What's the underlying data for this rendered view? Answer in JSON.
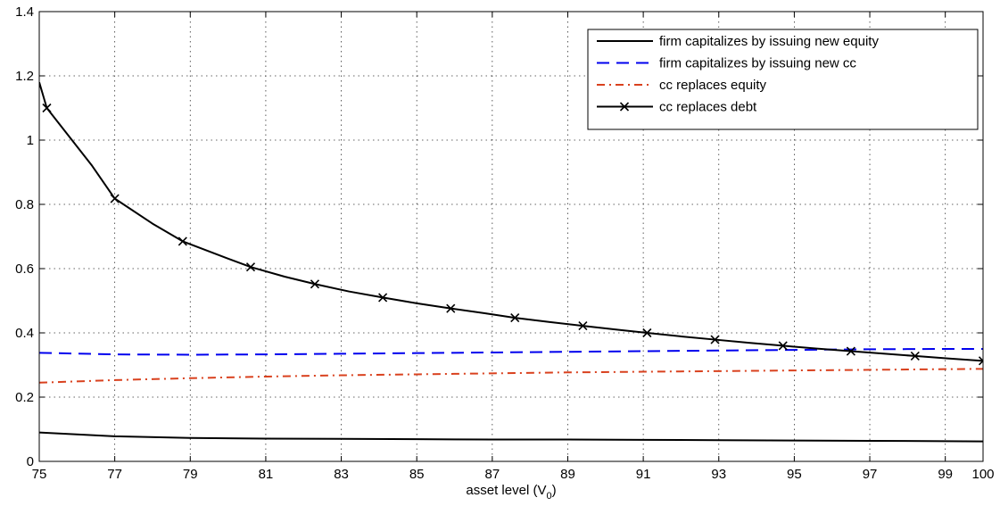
{
  "chart_data": {
    "type": "line",
    "xlabel": "asset level (V",
    "xlabel_sub": "0",
    "xlabel_suffix": ")",
    "ylabel": "",
    "title": "",
    "xlim": [
      75,
      100
    ],
    "ylim": [
      0,
      1.4
    ],
    "xticks": [
      75,
      77,
      79,
      81,
      83,
      85,
      87,
      89,
      91,
      93,
      95,
      97,
      99,
      100
    ],
    "yticks": [
      0,
      0.2,
      0.4,
      0.6,
      0.8,
      1,
      1.2,
      1.4
    ],
    "ytick_labels": [
      "0",
      "0.2",
      "0.4",
      "0.6",
      "0.8",
      "1",
      "1.2",
      "1.4"
    ],
    "grid": true,
    "legend_position": "top-right",
    "series": [
      {
        "name": "firm capitalizes by issuing new equity",
        "color": "#000000",
        "style": "solid",
        "marker": "none",
        "x": [
          75,
          77,
          79,
          81,
          83,
          85,
          87,
          89,
          91,
          93,
          95,
          97,
          99,
          100
        ],
        "y": [
          0.09,
          0.078,
          0.073,
          0.071,
          0.07,
          0.069,
          0.068,
          0.068,
          0.067,
          0.066,
          0.065,
          0.064,
          0.063,
          0.062
        ]
      },
      {
        "name": "firm capitalizes by issuing new cc",
        "color": "#0000ee",
        "style": "dashed",
        "marker": "none",
        "x": [
          75,
          77,
          79,
          81,
          83,
          85,
          87,
          89,
          91,
          93,
          95,
          97,
          99,
          100
        ],
        "y": [
          0.338,
          0.333,
          0.332,
          0.333,
          0.335,
          0.337,
          0.339,
          0.341,
          0.343,
          0.345,
          0.347,
          0.349,
          0.35,
          0.35
        ]
      },
      {
        "name": "cc replaces equity",
        "color": "#d9411e",
        "style": "dashdot",
        "marker": "none",
        "x": [
          75,
          77,
          79,
          81,
          83,
          85,
          87,
          89,
          91,
          93,
          95,
          97,
          99,
          100
        ],
        "y": [
          0.245,
          0.253,
          0.259,
          0.264,
          0.268,
          0.271,
          0.274,
          0.277,
          0.279,
          0.281,
          0.283,
          0.285,
          0.287,
          0.288
        ]
      },
      {
        "name": "cc replaces debt",
        "color": "#000000",
        "style": "solid",
        "marker": "x",
        "x": [
          75,
          75.2,
          76.4,
          77,
          78,
          78.8,
          79.8,
          80.6,
          81.5,
          82.3,
          83.2,
          84.1,
          85,
          85.9,
          86.8,
          87.6,
          88.5,
          89.4,
          90.3,
          91.1,
          92,
          92.9,
          93.8,
          94.7,
          95.6,
          96.5,
          97.4,
          98.2,
          99.1,
          100
        ],
        "y": [
          1.18,
          1.1,
          0.92,
          0.818,
          0.74,
          0.685,
          0.64,
          0.605,
          0.575,
          0.552,
          0.529,
          0.51,
          0.492,
          0.476,
          0.461,
          0.447,
          0.434,
          0.422,
          0.41,
          0.4,
          0.389,
          0.379,
          0.369,
          0.36,
          0.351,
          0.343,
          0.335,
          0.328,
          0.32,
          0.313
        ],
        "marker_x": [
          75.2,
          77,
          78.8,
          80.6,
          82.3,
          84.1,
          85.9,
          87.6,
          89.4,
          91.1,
          92.9,
          94.7,
          96.5,
          98.2,
          100
        ]
      }
    ]
  }
}
